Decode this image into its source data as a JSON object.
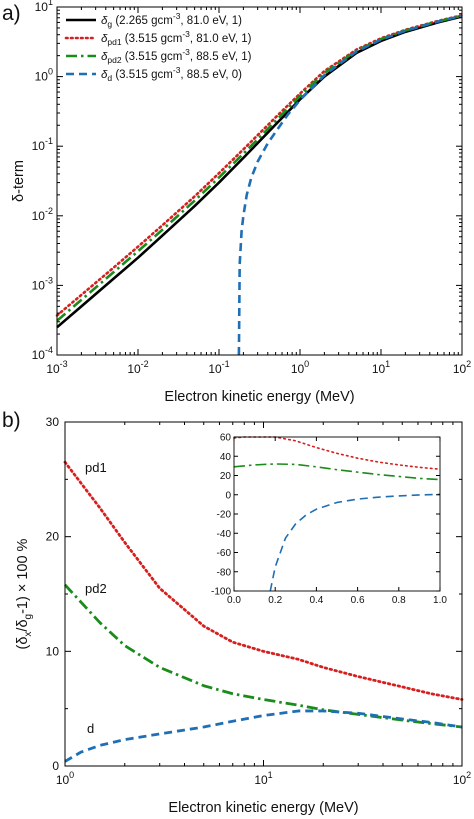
{
  "chart_data": [
    {
      "panel_letter": "a)",
      "type": "line",
      "xscale": "log",
      "yscale": "log",
      "xlim": [
        0.001,
        100
      ],
      "ylim": [
        0.0001,
        10
      ],
      "xlabel": "Electron kinetic energy (MeV)",
      "ylabel": "δ-term",
      "x_ticklabels": [
        "10^-3",
        "10^-2",
        "10^-1",
        "10^0",
        "10^1",
        "10^2"
      ],
      "y_ticklabels": [
        "10^-4",
        "10^-3",
        "10^-2",
        "10^-1",
        "10^0",
        "10^1"
      ],
      "legend_position": "top-left",
      "series": [
        {
          "name": "δg (2.265 gcm-3, 81.0 eV, 1)",
          "legend": {
            "sym": "δ",
            "sub": "g",
            "pre": " (2.265 gcm",
            "sup": "-3",
            "post": ", 81.0 eV, 1)"
          },
          "color": "#000000",
          "style": "solid",
          "x": [
            0.001,
            0.002,
            0.005,
            0.01,
            0.02,
            0.05,
            0.1,
            0.2,
            0.5,
            1,
            2,
            5,
            10,
            20,
            50,
            100
          ],
          "y": [
            0.00025,
            0.0005,
            0.00125,
            0.0025,
            0.0052,
            0.0138,
            0.03,
            0.068,
            0.205,
            0.47,
            1.0,
            2.2,
            3.25,
            4.4,
            6.0,
            7.3
          ]
        },
        {
          "name": "δpd1 (3.515 gcm-3, 81.0 eV, 1)",
          "legend": {
            "sym": "δ",
            "sub": "pd1",
            "pre": " (3.515 gcm",
            "sup": "-3",
            "post": ", 81.0 eV, 1)"
          },
          "color": "#d62020",
          "style": "dotted",
          "x": [
            0.001,
            0.002,
            0.005,
            0.01,
            0.02,
            0.05,
            0.1,
            0.2,
            0.5,
            1,
            2,
            5,
            10,
            20,
            50,
            100
          ],
          "y": [
            0.00037,
            0.00073,
            0.0018,
            0.0036,
            0.0073,
            0.019,
            0.041,
            0.09,
            0.26,
            0.57,
            1.2,
            2.45,
            3.55,
            4.7,
            6.3,
            7.6
          ]
        },
        {
          "name": "δpd2 (3.515 gcm-3, 88.5 eV, 1)",
          "legend": {
            "sym": "δ",
            "sub": "pd2",
            "pre": " (3.515 gcm",
            "sup": "-3",
            "post": ", 88.5 eV, 1)"
          },
          "color": "#1a8c1a",
          "style": "dashdot",
          "x": [
            0.001,
            0.002,
            0.005,
            0.01,
            0.02,
            0.05,
            0.1,
            0.2,
            0.5,
            1,
            2,
            5,
            10,
            20,
            50,
            100
          ],
          "y": [
            0.00031,
            0.00062,
            0.00155,
            0.0031,
            0.0063,
            0.0165,
            0.0355,
            0.078,
            0.23,
            0.53,
            1.13,
            2.37,
            3.45,
            4.6,
            6.2,
            7.5
          ]
        },
        {
          "name": "δd (3.515 gcm-3, 88.5 eV, 0)",
          "legend": {
            "sym": "δ",
            "sub": "d",
            "pre": " (3.515 gcm",
            "sup": "-3",
            "post": ", 88.5 eV, 0)"
          },
          "color": "#1f6fb5",
          "style": "dashed",
          "x": [
            0.176,
            0.18,
            0.19,
            0.2,
            0.22,
            0.25,
            0.3,
            0.4,
            0.5,
            0.7,
            1,
            2,
            5,
            10,
            20,
            50,
            100
          ],
          "y": [
            0.0001,
            0.002,
            0.006,
            0.01,
            0.02,
            0.035,
            0.06,
            0.11,
            0.16,
            0.28,
            0.46,
            1.05,
            2.3,
            3.4,
            4.55,
            6.15,
            7.45
          ]
        }
      ]
    },
    {
      "panel_letter": "b)",
      "type": "line",
      "xscale": "log",
      "yscale": "linear",
      "xlim": [
        1,
        100
      ],
      "ylim": [
        0,
        30
      ],
      "xlabel": "Electron kinetic energy (MeV)",
      "ylabel_parts": {
        "pre": "(δ",
        "sub1": "x",
        "mid": "/δ",
        "sub2": "g",
        "post": "-1) × 100 %"
      },
      "x_ticklabels": [
        "10^0",
        "10^1",
        "10^2"
      ],
      "y_ticks": [
        0,
        10,
        20,
        30
      ],
      "curve_labels": [
        "pd1",
        "pd2",
        "d"
      ],
      "series": [
        {
          "name": "pd1",
          "color": "#d62020",
          "style": "dotted",
          "x": [
            1,
            1.5,
            2,
            3,
            5,
            7,
            10,
            15,
            20,
            30,
            50,
            70,
            100
          ],
          "y": [
            26.5,
            22.5,
            19.5,
            15.5,
            12.2,
            10.8,
            10.0,
            9.3,
            8.6,
            7.8,
            6.9,
            6.3,
            5.8
          ]
        },
        {
          "name": "pd2",
          "color": "#1a8c1a",
          "style": "dashdot",
          "x": [
            1,
            1.5,
            2,
            3,
            5,
            7,
            10,
            15,
            20,
            30,
            50,
            70,
            100
          ],
          "y": [
            15.8,
            12.5,
            10.5,
            8.6,
            7.0,
            6.3,
            5.8,
            5.3,
            4.9,
            4.5,
            4.0,
            3.7,
            3.4
          ]
        },
        {
          "name": "d",
          "color": "#1f6fb5",
          "style": "dashed",
          "x": [
            1,
            1.2,
            1.5,
            2,
            3,
            5,
            7,
            10,
            15,
            20,
            30,
            50,
            70,
            100
          ],
          "y": [
            0.4,
            1.2,
            1.8,
            2.3,
            2.8,
            3.4,
            3.9,
            4.4,
            4.8,
            4.8,
            4.6,
            4.1,
            3.8,
            3.4
          ]
        }
      ],
      "inset": {
        "xlim": [
          0,
          1
        ],
        "ylim": [
          -100,
          60
        ],
        "x_ticks": [
          "0.0",
          "0.2",
          "0.4",
          "0.6",
          "0.8",
          "1.0"
        ],
        "y_ticks": [
          -100,
          -80,
          -60,
          -40,
          -20,
          0,
          20,
          40,
          60
        ],
        "series": [
          {
            "name": "pd1",
            "color": "#d62020",
            "style": "dotted",
            "x": [
              0,
              0.05,
              0.1,
              0.15,
              0.2,
              0.3,
              0.4,
              0.5,
              0.6,
              0.7,
              0.8,
              0.9,
              1.0
            ],
            "y": [
              59,
              60,
              61,
              62,
              61,
              56,
              49,
              43,
              38,
              34,
              31,
              28.5,
              26.5
            ]
          },
          {
            "name": "pd2",
            "color": "#1a8c1a",
            "style": "dashdot",
            "x": [
              0,
              0.1,
              0.2,
              0.3,
              0.4,
              0.5,
              0.6,
              0.7,
              0.8,
              0.9,
              1.0
            ],
            "y": [
              29,
              31,
              32,
              31.5,
              29,
              26,
              23.5,
              21,
              19,
              17,
              15.8
            ]
          },
          {
            "name": "d",
            "color": "#1f6fb5",
            "style": "dashed",
            "x": [
              0.176,
              0.2,
              0.25,
              0.3,
              0.35,
              0.4,
              0.5,
              0.6,
              0.7,
              0.8,
              0.9,
              1.0
            ],
            "y": [
              -100,
              -75,
              -45,
              -30,
              -21,
              -15,
              -8,
              -4.5,
              -2.5,
              -1.2,
              -0.2,
              0.4
            ]
          }
        ]
      }
    }
  ]
}
